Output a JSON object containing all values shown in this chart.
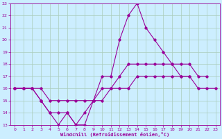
{
  "xlabel": "Windchill (Refroidissement éolien,°C)",
  "background_color": "#cceeff",
  "line_color": "#990099",
  "grid_color": "#aaccbb",
  "xlim": [
    -0.5,
    23.5
  ],
  "ylim": [
    13,
    23
  ],
  "xticks": [
    0,
    1,
    2,
    3,
    4,
    5,
    6,
    7,
    8,
    9,
    10,
    11,
    12,
    13,
    14,
    15,
    16,
    17,
    18,
    19,
    20,
    21,
    22,
    23
  ],
  "yticks": [
    13,
    14,
    15,
    16,
    17,
    18,
    19,
    20,
    21,
    22,
    23
  ],
  "series": [
    [
      16,
      16,
      16,
      15,
      14,
      14,
      14,
      13,
      13,
      15,
      17,
      17,
      20,
      22,
      23,
      21,
      20,
      19,
      18,
      17,
      17,
      null,
      null,
      null
    ],
    [
      16,
      16,
      16,
      15,
      14,
      13,
      14,
      13,
      14,
      15,
      15,
      16,
      17,
      18,
      18,
      18,
      18,
      18,
      18,
      18,
      18,
      17,
      17,
      null
    ],
    [
      16,
      16,
      16,
      16,
      15,
      15,
      15,
      15,
      15,
      15,
      16,
      16,
      16,
      16,
      17,
      17,
      17,
      17,
      17,
      17,
      17,
      16,
      16,
      16
    ],
    [
      null,
      null,
      null,
      15,
      null,
      null,
      null,
      null,
      null,
      null,
      null,
      null,
      null,
      null,
      null,
      null,
      null,
      null,
      null,
      null,
      null,
      null,
      null,
      null
    ]
  ]
}
